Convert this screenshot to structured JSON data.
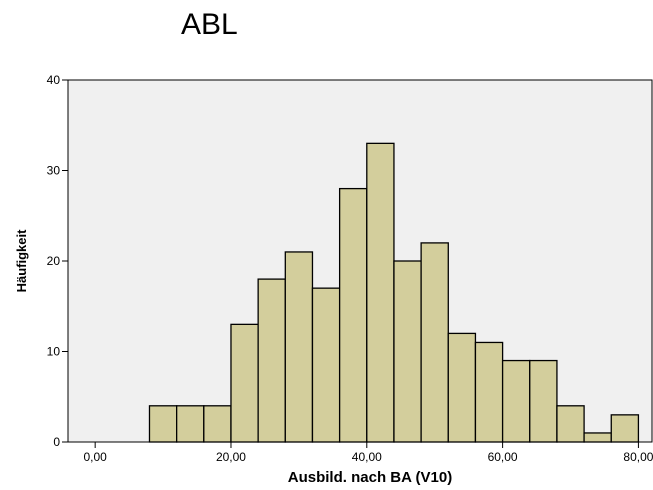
{
  "chart_data": {
    "type": "bar",
    "title": "ABL",
    "xlabel": "Ausbild. nach BA (V10)",
    "ylabel": "Häufigkeit",
    "xlim": [
      -4,
      82
    ],
    "ylim": [
      0,
      40
    ],
    "xticks": [
      {
        "value": 0,
        "label": "0,00"
      },
      {
        "value": 20,
        "label": "20,00"
      },
      {
        "value": 40,
        "label": "40,00"
      },
      {
        "value": 60,
        "label": "60,00"
      },
      {
        "value": 80,
        "label": "80,00"
      }
    ],
    "yticks": [
      {
        "value": 0,
        "label": "0"
      },
      {
        "value": 10,
        "label": "10"
      },
      {
        "value": 20,
        "label": "20"
      },
      {
        "value": 30,
        "label": "30"
      },
      {
        "value": 40,
        "label": "40"
      }
    ],
    "bins": [
      {
        "start": 8,
        "end": 12,
        "count": 4
      },
      {
        "start": 12,
        "end": 16,
        "count": 4
      },
      {
        "start": 16,
        "end": 20,
        "count": 4
      },
      {
        "start": 20,
        "end": 24,
        "count": 13
      },
      {
        "start": 24,
        "end": 28,
        "count": 18
      },
      {
        "start": 28,
        "end": 32,
        "count": 21
      },
      {
        "start": 32,
        "end": 36,
        "count": 17
      },
      {
        "start": 36,
        "end": 40,
        "count": 28
      },
      {
        "start": 40,
        "end": 44,
        "count": 33
      },
      {
        "start": 44,
        "end": 48,
        "count": 20
      },
      {
        "start": 48,
        "end": 52,
        "count": 22
      },
      {
        "start": 52,
        "end": 56,
        "count": 12
      },
      {
        "start": 56,
        "end": 60,
        "count": 11
      },
      {
        "start": 60,
        "end": 64,
        "count": 9
      },
      {
        "start": 64,
        "end": 68,
        "count": 9
      },
      {
        "start": 68,
        "end": 72,
        "count": 4
      },
      {
        "start": 72,
        "end": 76,
        "count": 1
      },
      {
        "start": 76,
        "end": 80,
        "count": 3
      }
    ],
    "colors": {
      "bar_fill": "#d3ce9c",
      "bar_stroke": "#000000",
      "plot_background": "#f0f0f0",
      "frame": "#000000"
    },
    "grid": false,
    "legend": "none"
  }
}
